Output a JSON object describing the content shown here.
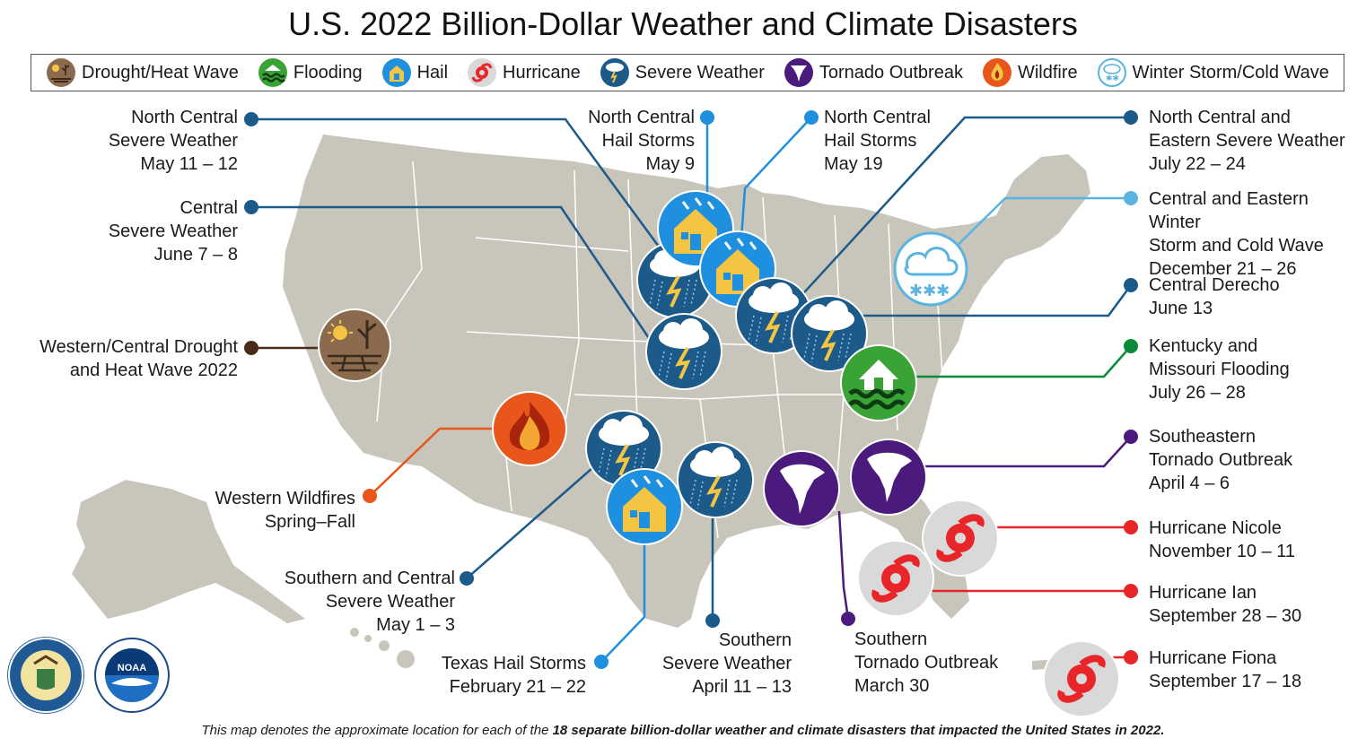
{
  "title": "U.S. 2022 Billion-Dollar Weather and Climate Disasters",
  "legend": [
    {
      "label": "Drought/Heat Wave",
      "icon": "drought-icon",
      "color": "#8b6a4e"
    },
    {
      "label": "Flooding",
      "icon": "flooding-icon",
      "color": "#3aa335"
    },
    {
      "label": "Hail",
      "icon": "hail-icon",
      "color": "#1f8fe0"
    },
    {
      "label": "Hurricane",
      "icon": "hurricane-icon",
      "color": "#d9d9d9"
    },
    {
      "label": "Severe Weather",
      "icon": "severe-weather-icon",
      "color": "#1c5a8a"
    },
    {
      "label": "Tornado Outbreak",
      "icon": "tornado-icon",
      "color": "#4b1a7d"
    },
    {
      "label": "Wildfire",
      "icon": "wildfire-icon",
      "color": "#e8561c"
    },
    {
      "label": "Winter Storm/Cold Wave",
      "icon": "winter-storm-icon",
      "color": "#5ab4e0"
    }
  ],
  "events": {
    "nc_severe_may": [
      "North Central",
      "Severe Weather",
      "May 11 – 12"
    ],
    "central_severe_june": [
      "Central",
      "Severe Weather",
      "June 7 – 8"
    ],
    "drought": [
      "Western/Central Drought",
      "and Heat Wave 2022"
    ],
    "wildfires": [
      "Western Wildfires",
      "Spring–Fall"
    ],
    "southern_central_severe": [
      "Southern and Central",
      "Severe Weather",
      "May 1 – 3"
    ],
    "texas_hail": [
      "Texas Hail Storms",
      "February 21 – 22"
    ],
    "southern_severe": [
      "Southern",
      "Severe Weather",
      "April 11 – 13"
    ],
    "southern_tornado": [
      "Southern",
      "Tornado Outbreak",
      "March 30"
    ],
    "nc_hail_may9": [
      "North Central",
      "Hail Storms",
      "May 9"
    ],
    "nc_hail_may19": [
      "North Central",
      "Hail Storms",
      "May 19"
    ],
    "nc_eastern_severe": [
      "North Central and",
      "Eastern Severe Weather",
      "July 22 – 24"
    ],
    "winter_storm": [
      "Central and Eastern Winter",
      "Storm and Cold Wave",
      "December 21 – 26"
    ],
    "derecho": [
      "Central Derecho",
      "June 13"
    ],
    "ky_mo_flood": [
      "Kentucky and",
      "Missouri Flooding",
      "July 26 – 28"
    ],
    "se_tornado": [
      "Southeastern",
      "Tornado Outbreak",
      "April 4 – 6"
    ],
    "nicole": [
      "Hurricane Nicole",
      "November 10 – 11"
    ],
    "ian": [
      "Hurricane Ian",
      "September 28 – 30"
    ],
    "fiona": [
      "Hurricane Fiona",
      "September 17 – 18"
    ]
  },
  "footnote": {
    "pre": "This map denotes the approximate location for each of the ",
    "bold": "18 separate billion-dollar weather and climate disasters that impacted the United States in 2022.",
    "post": ""
  },
  "seals": [
    {
      "name": "department-of-commerce-seal",
      "text": "DEPARTMENT OF COMMERCE · UNITED STATES OF AMERICA"
    },
    {
      "name": "noaa-logo",
      "text": "NOAA"
    }
  ],
  "colors": {
    "map": "#c8c5bb",
    "border": "#ffffff",
    "severe": "#1c5a8a",
    "hail": "#1f8fe0",
    "tornado": "#4b1a7d",
    "flood": "#3aa335",
    "hurricane": "#d9d9d9",
    "hurricane_red": "#e8262a",
    "wildfire": "#e8561c",
    "drought": "#8b6a4e",
    "winter": "#5ab4e0"
  }
}
